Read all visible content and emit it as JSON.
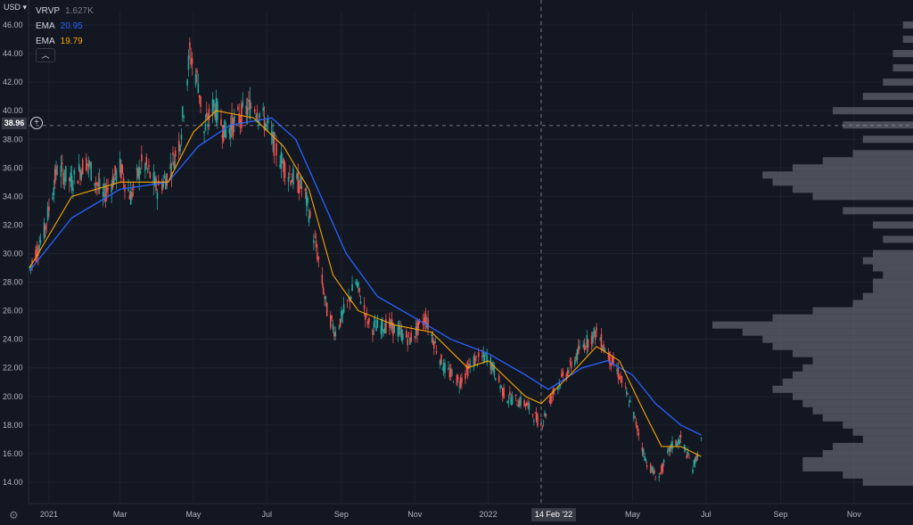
{
  "currency_label": "USD",
  "legend": [
    {
      "name": "VRVP",
      "value": "1.627K",
      "color": "#787b86"
    },
    {
      "name": "EMA",
      "value": "20.95",
      "color": "#2962ff"
    },
    {
      "name": "EMA",
      "value": "19.79",
      "color": "#f7a600"
    }
  ],
  "crosshair": {
    "price_label": "38.96",
    "date_label": "14 Feb '22"
  },
  "colors": {
    "background": "#131722",
    "up": "#26a69a",
    "down": "#ef5350",
    "ema_slow": "#2962ff",
    "ema_fast": "#f7a600",
    "volume_profile": "#787b86"
  },
  "chart_data": {
    "type": "candlestick",
    "y_axis": {
      "ticks": [
        14,
        16,
        18,
        20,
        22,
        24,
        26,
        28,
        30,
        32,
        34,
        36,
        38,
        40,
        42,
        44,
        46
      ],
      "tick_labels": [
        "14.00",
        "16.00",
        "18.00",
        "20.00",
        "22.00",
        "24.00",
        "26.00",
        "28.00",
        "30.00",
        "32.00",
        "34.00",
        "36.00",
        "38.00",
        "40.00",
        "42.00",
        "44.00",
        "46.00"
      ],
      "range": [
        12.5,
        47
      ]
    },
    "x_axis": {
      "ticks": [
        "2021-01-01",
        "2021-03-01",
        "2021-05-01",
        "2021-07-01",
        "2021-09-01",
        "2021-11-01",
        "2022-01-01",
        "2022-05-01",
        "2022-07-01",
        "2022-09-01",
        "2022-11-01"
      ],
      "tick_labels": [
        "2021",
        "Mar",
        "May",
        "Jul",
        "Sep",
        "Nov",
        "2022",
        "May",
        "Jul",
        "Sep",
        "Nov"
      ],
      "range": [
        "2020-12-15",
        "2022-12-20"
      ]
    },
    "price_anchors": [
      [
        "2020-12-16",
        29.0
      ],
      [
        "2020-12-28",
        31.5
      ],
      [
        "2021-01-08",
        36.0
      ],
      [
        "2021-01-20",
        35.0
      ],
      [
        "2021-02-01",
        36.5
      ],
      [
        "2021-02-15",
        34.0
      ],
      [
        "2021-03-01",
        36.0
      ],
      [
        "2021-03-10",
        34.0
      ],
      [
        "2021-03-20",
        36.5
      ],
      [
        "2021-04-01",
        34.5
      ],
      [
        "2021-04-10",
        35.5
      ],
      [
        "2021-04-20",
        38.0
      ],
      [
        "2021-04-28",
        44.0
      ],
      [
        "2021-05-05",
        42.0
      ],
      [
        "2021-05-10",
        38.5
      ],
      [
        "2021-05-18",
        40.5
      ],
      [
        "2021-05-27",
        38.5
      ],
      [
        "2021-06-08",
        39.5
      ],
      [
        "2021-06-20",
        40.5
      ],
      [
        "2021-07-01",
        39.0
      ],
      [
        "2021-07-10",
        37.0
      ],
      [
        "2021-07-20",
        35.5
      ],
      [
        "2021-08-01",
        34.5
      ],
      [
        "2021-08-12",
        30.0
      ],
      [
        "2021-08-20",
        26.0
      ],
      [
        "2021-08-27",
        24.5
      ],
      [
        "2021-09-06",
        26.5
      ],
      [
        "2021-09-13",
        28.0
      ],
      [
        "2021-09-25",
        24.8
      ],
      [
        "2021-10-10",
        25.0
      ],
      [
        "2021-10-28",
        24.0
      ],
      [
        "2021-11-10",
        25.5
      ],
      [
        "2021-11-25",
        22.0
      ],
      [
        "2021-12-08",
        21.0
      ],
      [
        "2021-12-20",
        22.5
      ],
      [
        "2022-01-01",
        22.8
      ],
      [
        "2022-01-15",
        20.0
      ],
      [
        "2022-02-01",
        19.5
      ],
      [
        "2022-02-14",
        18.0
      ],
      [
        "2022-02-25",
        20.5
      ],
      [
        "2022-03-10",
        22.0
      ],
      [
        "2022-03-20",
        23.5
      ],
      [
        "2022-04-01",
        24.5
      ],
      [
        "2022-04-10",
        23.0
      ],
      [
        "2022-04-20",
        21.5
      ],
      [
        "2022-05-01",
        19.0
      ],
      [
        "2022-05-12",
        15.5
      ],
      [
        "2022-05-22",
        14.2
      ],
      [
        "2022-06-02",
        16.5
      ],
      [
        "2022-06-10",
        17.0
      ],
      [
        "2022-06-20",
        15.0
      ],
      [
        "2022-06-27",
        16.8
      ]
    ],
    "ema_fast": {
      "label": "EMA",
      "value": 19.79,
      "points": [
        [
          "2020-12-16",
          29.0
        ],
        [
          "2021-01-20",
          34.0
        ],
        [
          "2021-03-01",
          35.0
        ],
        [
          "2021-04-10",
          35.0
        ],
        [
          "2021-05-01",
          38.5
        ],
        [
          "2021-05-20",
          40.0
        ],
        [
          "2021-06-20",
          39.5
        ],
        [
          "2021-07-15",
          37.5
        ],
        [
          "2021-08-05",
          34.5
        ],
        [
          "2021-08-25",
          28.5
        ],
        [
          "2021-09-15",
          26.0
        ],
        [
          "2021-10-15",
          25.0
        ],
        [
          "2021-11-15",
          24.5
        ],
        [
          "2021-12-15",
          22.0
        ],
        [
          "2022-01-01",
          22.5
        ],
        [
          "2022-02-01",
          20.0
        ],
        [
          "2022-02-14",
          19.5
        ],
        [
          "2022-03-10",
          21.5
        ],
        [
          "2022-04-01",
          23.5
        ],
        [
          "2022-04-20",
          22.5
        ],
        [
          "2022-05-10",
          19.0
        ],
        [
          "2022-05-25",
          16.5
        ],
        [
          "2022-06-10",
          16.5
        ],
        [
          "2022-06-27",
          15.8
        ]
      ]
    },
    "ema_slow": {
      "label": "EMA",
      "value": 20.95,
      "points": [
        [
          "2020-12-16",
          28.8
        ],
        [
          "2021-01-20",
          32.5
        ],
        [
          "2021-03-01",
          34.5
        ],
        [
          "2021-04-10",
          35.0
        ],
        [
          "2021-05-05",
          37.5
        ],
        [
          "2021-06-01",
          39.0
        ],
        [
          "2021-07-05",
          39.5
        ],
        [
          "2021-07-25",
          38.0
        ],
        [
          "2021-08-15",
          34.0
        ],
        [
          "2021-09-05",
          30.0
        ],
        [
          "2021-10-01",
          27.0
        ],
        [
          "2021-11-01",
          25.5
        ],
        [
          "2021-12-01",
          24.0
        ],
        [
          "2022-01-01",
          23.0
        ],
        [
          "2022-02-01",
          21.5
        ],
        [
          "2022-02-20",
          20.5
        ],
        [
          "2022-03-20",
          22.0
        ],
        [
          "2022-04-10",
          22.5
        ],
        [
          "2022-05-01",
          21.5
        ],
        [
          "2022-05-20",
          19.5
        ],
        [
          "2022-06-10",
          18.0
        ],
        [
          "2022-06-27",
          17.3
        ]
      ]
    },
    "volume_profile": {
      "label": "VRVP",
      "value": "1.627K",
      "levels": [
        [
          14,
          0.25
        ],
        [
          14.5,
          0.35
        ],
        [
          15,
          0.55
        ],
        [
          15.5,
          0.55
        ],
        [
          16,
          0.45
        ],
        [
          16.5,
          0.4
        ],
        [
          17,
          0.25
        ],
        [
          17.5,
          0.3
        ],
        [
          18,
          0.35
        ],
        [
          18.5,
          0.45
        ],
        [
          19,
          0.5
        ],
        [
          19.5,
          0.55
        ],
        [
          20,
          0.6
        ],
        [
          20.5,
          0.7
        ],
        [
          21,
          0.65
        ],
        [
          21.5,
          0.6
        ],
        [
          22,
          0.55
        ],
        [
          22.5,
          0.5
        ],
        [
          23,
          0.6
        ],
        [
          23.5,
          0.7
        ],
        [
          24,
          0.75
        ],
        [
          24.5,
          0.85
        ],
        [
          25,
          1.0
        ],
        [
          25.5,
          0.7
        ],
        [
          26,
          0.5
        ],
        [
          26.5,
          0.3
        ],
        [
          27,
          0.25
        ],
        [
          27.5,
          0.2
        ],
        [
          28,
          0.2
        ],
        [
          28.5,
          0.15
        ],
        [
          29,
          0.2
        ],
        [
          29.5,
          0.25
        ],
        [
          30,
          0.2
        ],
        [
          31,
          0.15
        ],
        [
          32,
          0.2
        ],
        [
          33,
          0.35
        ],
        [
          34,
          0.5
        ],
        [
          34.5,
          0.6
        ],
        [
          35,
          0.7
        ],
        [
          35.5,
          0.75
        ],
        [
          36,
          0.6
        ],
        [
          36.5,
          0.45
        ],
        [
          37,
          0.3
        ],
        [
          38,
          0.25
        ],
        [
          39,
          0.35
        ],
        [
          40,
          0.4
        ],
        [
          41,
          0.25
        ],
        [
          42,
          0.15
        ],
        [
          43,
          0.1
        ],
        [
          44,
          0.1
        ],
        [
          45,
          0.05
        ],
        [
          46,
          0.05
        ]
      ]
    }
  }
}
